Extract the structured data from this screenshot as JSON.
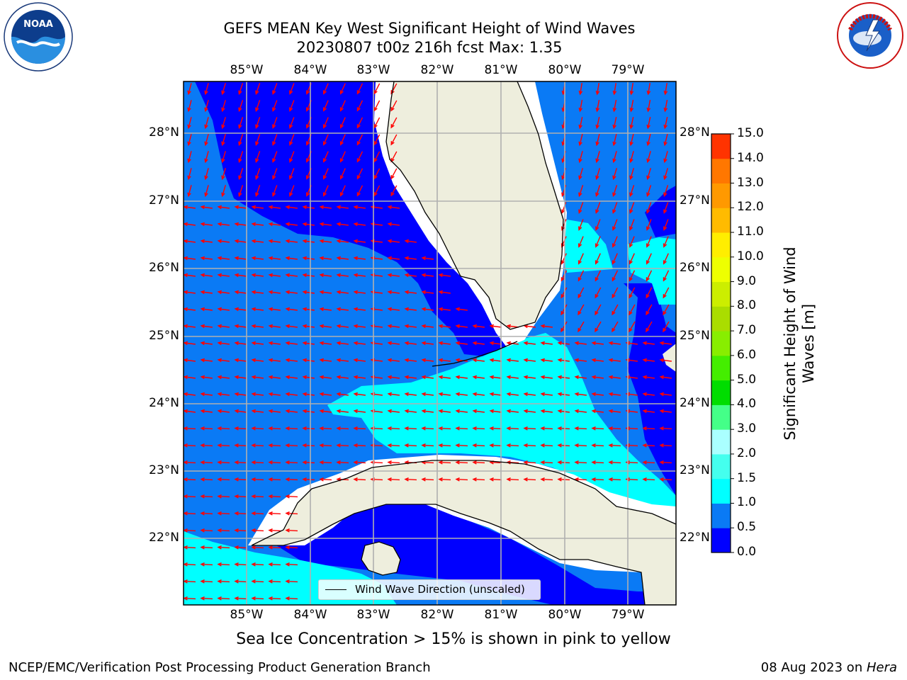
{
  "header": {
    "title_line1": "GEFS MEAN Key West Significant Height of Wind Waves",
    "title_line2": "20230807 t00z 216h fcst   Max: 1.35"
  },
  "logos": {
    "noaa_text": "NOAA",
    "nws_text": "NATIONAL WEATHER SERVICE"
  },
  "map": {
    "lon_labels": [
      "85°W",
      "84°W",
      "83°W",
      "82°W",
      "81°W",
      "80°W",
      "79°W"
    ],
    "lat_labels": [
      "28°N",
      "27°N",
      "26°N",
      "25°N",
      "24°N",
      "23°N",
      "22°N"
    ],
    "legend_label": "Wind Wave Direction (unscaled)",
    "colors": {
      "land": "#eeeedd",
      "band_0_0_5": "#0000ff",
      "band_0_5_1_0": "#0a7af5",
      "band_1_0_1_5": "#00ffff",
      "arrow": "#ff0000",
      "grid": "#b0b0b0"
    }
  },
  "colorbar": {
    "label": "Significant Height of Wind Waves [m]",
    "label_line1": "Significant Height of Wind",
    "label_line2": "Waves [m]",
    "ticks": [
      "0.0",
      "0.5",
      "1.0",
      "1.5",
      "2.0",
      "3.0",
      "4.0",
      "5.0",
      "6.0",
      "7.0",
      "8.0",
      "9.0",
      "10.0",
      "11.0",
      "12.0",
      "13.0",
      "14.0",
      "15.0"
    ],
    "colors": [
      "#0000ff",
      "#0a7af5",
      "#00ffff",
      "#44ffee",
      "#aaffff",
      "#44ff88",
      "#00dd00",
      "#44ee00",
      "#88ee00",
      "#aadd00",
      "#ccee00",
      "#eeff00",
      "#ffee00",
      "#ffbb00",
      "#ff9900",
      "#ff7700",
      "#ff3300",
      "#ff0000"
    ]
  },
  "ice_note": "Sea Ice Concentration > 15% is shown in pink to yellow",
  "footer": {
    "left": "NCEP/EMC/Verification Post Processing Product Generation Branch",
    "right_prefix": "08 Aug 2023 on ",
    "right_host": "Hera"
  }
}
